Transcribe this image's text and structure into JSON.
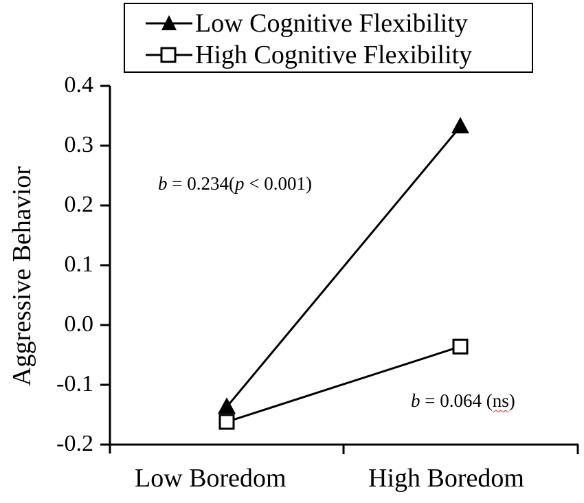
{
  "chart_data": {
    "type": "line",
    "title": "",
    "xlabel": "",
    "ylabel": "Aggressive Behavior",
    "categories": [
      "Low Boredom",
      "High Boredom"
    ],
    "ylim": [
      -0.2,
      0.4
    ],
    "yticks": [
      "0.4",
      "0.3",
      "0.2",
      "0.1",
      "0.0",
      "-0.1",
      "-0.2"
    ],
    "grid": false,
    "legend_position": "top",
    "series": [
      {
        "name": "Low Cognitive Flexibility",
        "marker": "filled-triangle",
        "values": [
          -0.137,
          0.332
        ]
      },
      {
        "name": "High Cognitive Flexibility",
        "marker": "open-square",
        "values": [
          -0.162,
          -0.036
        ]
      }
    ],
    "annotations": [
      {
        "b_label": "b",
        "text_mid": " = 0.234(",
        "p_label": "p",
        "text_end": " < 0.001)",
        "series": "Low Cognitive Flexibility"
      },
      {
        "b_label": "b",
        "text_mid": " = 0.064 (",
        "ns_label": "ns",
        "text_end": ")",
        "series": "High Cognitive Flexibility"
      }
    ]
  },
  "colors": {
    "line": "#000000",
    "background": "#ffffff",
    "spellcheck_underline": "#e03030"
  }
}
